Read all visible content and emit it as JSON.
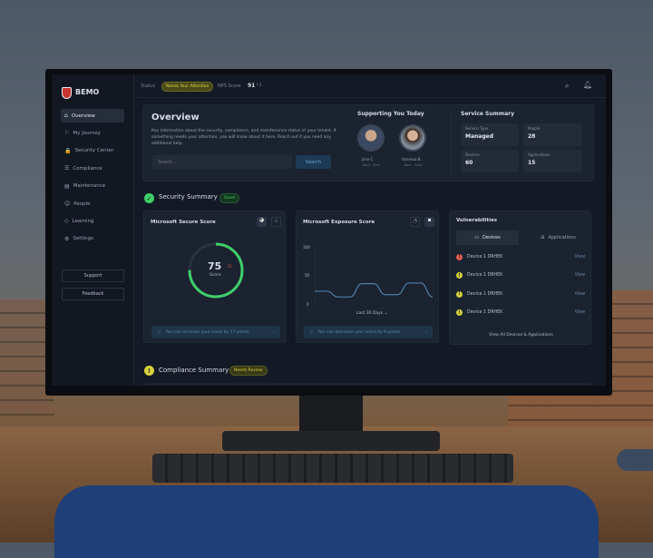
{
  "app": {
    "logo_text": "BEMO"
  },
  "topbar": {
    "status_label": "Status",
    "status_badge": "Needs Your Attention",
    "nps_label": "NPS Score",
    "nps_value": "91",
    "nps_change": "↑2",
    "icons": [
      "search-icon",
      "bell-icon"
    ]
  },
  "sidebar": {
    "items": [
      {
        "label": "Overview",
        "icon": "⌂",
        "active": true
      },
      {
        "label": "My Journey",
        "icon": "⚐"
      },
      {
        "label": "Security Center",
        "icon": "🔒"
      },
      {
        "label": "Compliance",
        "icon": "☰"
      },
      {
        "label": "Maintenance",
        "icon": "▤"
      },
      {
        "label": "People",
        "icon": "☺"
      },
      {
        "label": "Learning",
        "icon": "◇"
      },
      {
        "label": "Settings",
        "icon": "⚙"
      }
    ],
    "support": "Support",
    "feedback": "Feedback"
  },
  "overview": {
    "title": "Overview",
    "description": "Key information about the security, compliance, and maintenance status of your tenant. If something needs your attention, you will know about it here. Reach out if you need any additional help.",
    "search_placeholder": "Search...",
    "search_button": "Search"
  },
  "supporting": {
    "title": "Supporting You Today",
    "people": [
      {
        "name": "Jose C.",
        "hours": "8am - 5pm"
      },
      {
        "name": "Vanessa B.",
        "hours": "8am - 5pm"
      }
    ]
  },
  "service_summary": {
    "title": "Service Summary",
    "tiles": [
      {
        "label": "Service Type",
        "value": "Managed"
      },
      {
        "label": "People",
        "value": "28"
      },
      {
        "label": "Devices",
        "value": "60"
      },
      {
        "label": "Applications",
        "value": "15"
      }
    ]
  },
  "security_summary": {
    "title": "Security Summary",
    "badge": "Good"
  },
  "secure_score": {
    "title": "Microsoft  Secure Score",
    "score": "75",
    "change": "- 20",
    "score_label": "Score",
    "fill_percent": 75,
    "info": "You can increase your score by 17 points"
  },
  "exposure_score": {
    "title": "Microsoft  Exposure Score",
    "y_ticks": [
      "100",
      "50",
      "0"
    ],
    "range_label": "Last 30 Days",
    "info": "You can decrease your score by 9 points",
    "chart_data": {
      "type": "line",
      "ylim": [
        0,
        100
      ],
      "values": [
        22,
        22,
        12,
        12,
        35,
        35,
        16,
        16,
        36,
        36,
        12
      ]
    }
  },
  "vulnerabilities": {
    "title": "Vulnerabilities",
    "tabs": [
      "Devices",
      "Applications"
    ],
    "rows": [
      {
        "name": "Device 1 DRHEK",
        "severity": "high",
        "color": "#e05a52",
        "action": "View"
      },
      {
        "name": "Device 1 DRHEK",
        "severity": "medium",
        "color": "#d6d13a",
        "action": "View"
      },
      {
        "name": "Device 1 DRHEK",
        "severity": "medium",
        "color": "#d6d13a",
        "action": "View"
      },
      {
        "name": "Device 1 DRHEK",
        "severity": "medium",
        "color": "#d6d13a",
        "action": "View"
      }
    ],
    "footer": "View All Devices & Applications"
  },
  "compliance_summary": {
    "title": "Compliance Summary",
    "badge": "Needs Review"
  },
  "colors": {
    "accent_green": "#3fd06a",
    "warning": "#d6d13a",
    "danger": "#e05a52",
    "info": "#5c8fb8"
  }
}
